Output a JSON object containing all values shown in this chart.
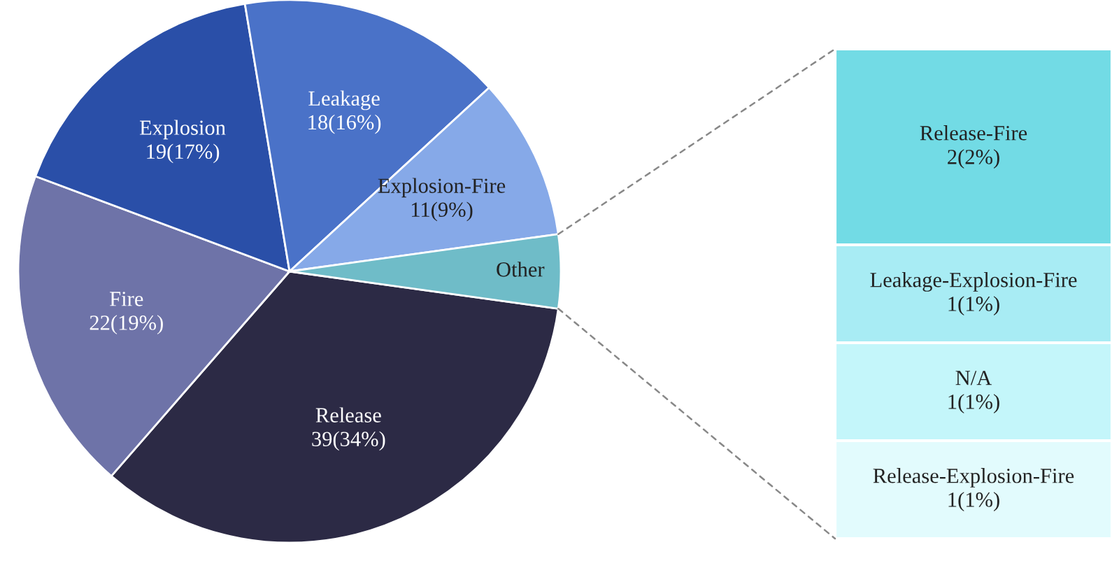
{
  "chart_data": [
    {
      "type": "pie",
      "categories": [
        "Release",
        "Fire",
        "Explosion",
        "Leakage",
        "Explosion-Fire",
        "Other"
      ],
      "values": [
        39,
        22,
        19,
        18,
        11,
        5
      ],
      "value_labels": [
        "39(34%)",
        "22(19%)",
        "19(17%)",
        "18(16%)",
        "11(9%)",
        null
      ],
      "colors": [
        "#2c2a45",
        "#6e73a8",
        "#2a4fa8",
        "#4a72c8",
        "#86a9e8",
        "#6fbcc8"
      ]
    },
    {
      "type": "bar",
      "stacked": true,
      "categories": [
        null
      ],
      "series": [
        {
          "name": "Release-Explosion-Fire",
          "color": "#e2fbfd",
          "values": [
            1
          ],
          "value_labels": [
            "1(1%)"
          ]
        },
        {
          "name": "N/A",
          "color": "#c4f6fa",
          "values": [
            1
          ],
          "value_labels": [
            "1(1%)"
          ]
        },
        {
          "name": "Leakage-Explosion-Fire",
          "color": "#a8ecf4",
          "values": [
            1
          ],
          "value_labels": [
            "1(1%)"
          ]
        },
        {
          "name": "Release-Fire",
          "color": "#72dbe5",
          "values": [
            2
          ],
          "value_labels": [
            "2(2%)"
          ]
        }
      ]
    }
  ]
}
